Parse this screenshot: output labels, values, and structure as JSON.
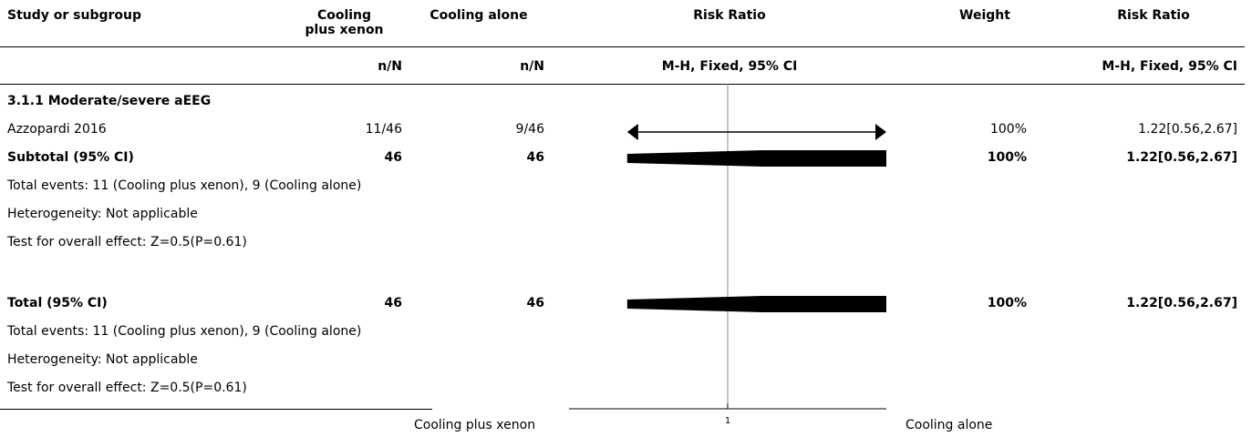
{
  "header": {
    "study": "Study or subgroup",
    "exp_line1": "Cooling",
    "exp_line2": "plus xenon",
    "ctrl": "Cooling alone",
    "rr": "Risk Ratio",
    "weight": "Weight",
    "rr_right": "Risk Ratio",
    "exp_sub": "n/N",
    "ctrl_sub": "n/N",
    "rr_method": "M-H, Fixed, 95% CI",
    "rr_method_right": "M-H, Fixed, 95% CI"
  },
  "subgroup": {
    "title": "3.1.1 Moderate/severe aEEG",
    "study": {
      "name": "Azzopardi 2016",
      "exp": "11/46",
      "ctrl": "9/46",
      "weight": "100%",
      "ci": "1.22[0.56,2.67]"
    },
    "subtotal": {
      "label": "Subtotal (95% CI)",
      "exp": "46",
      "ctrl": "46",
      "weight": "100%",
      "ci": "1.22[0.56,2.67]"
    },
    "events": "Total events: 11 (Cooling plus xenon), 9 (Cooling alone)",
    "heterogeneity": "Heterogeneity: Not applicable",
    "overall": "Test for overall effect: Z=0.5(P=0.61)"
  },
  "total": {
    "label": "Total (95% CI)",
    "exp": "46",
    "ctrl": "46",
    "weight": "100%",
    "ci": "1.22[0.56,2.67]",
    "events": "Total events: 11 (Cooling plus xenon), 9 (Cooling alone)",
    "heterogeneity": "Heterogeneity: Not applicable",
    "overall": "Test for overall effect: Z=0.5(P=0.61)"
  },
  "footer": {
    "favours_left": "Cooling plus xenon",
    "axis_tick": "1",
    "favours_right": "Cooling alone"
  },
  "chart_data": {
    "type": "forest",
    "scale": "log",
    "null_value": 1,
    "rows": [
      {
        "label": "Azzopardi 2016",
        "kind": "study",
        "rr": 1.22,
        "lower": 0.56,
        "upper": 2.67,
        "weight": 100,
        "exceeds_axis": true
      },
      {
        "label": "Subtotal (95% CI)",
        "kind": "summary",
        "rr": 1.22,
        "lower": 0.56,
        "upper": 2.67
      },
      {
        "label": "Total (95% CI)",
        "kind": "summary",
        "rr": 1.22,
        "lower": 0.56,
        "upper": 2.67
      }
    ]
  }
}
